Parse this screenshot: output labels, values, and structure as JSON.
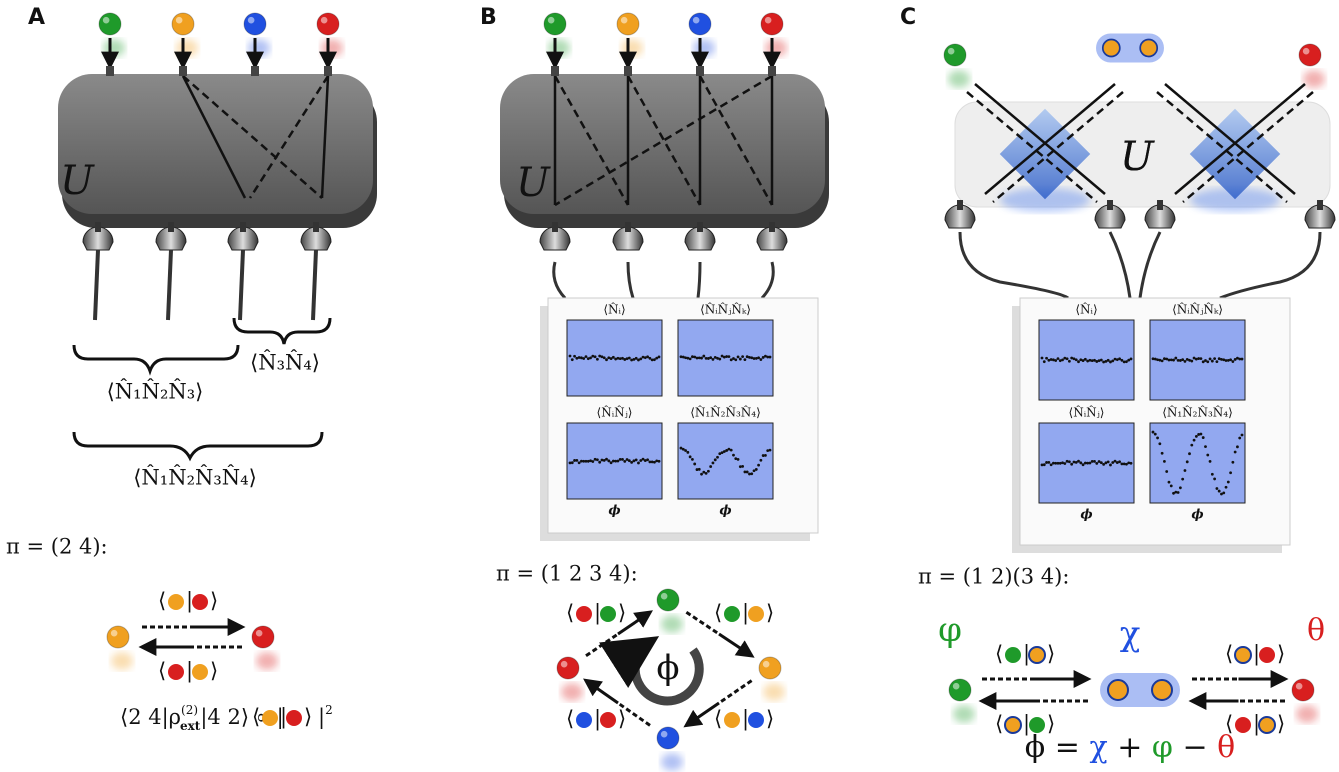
{
  "panels": [
    {
      "label": "A",
      "unitary": "U",
      "braces": [
        "⟨N̂₃N̂₄⟩",
        "⟨N̂₁N̂₂N̂₃⟩",
        "⟨N̂₁N̂₂N̂₃N̂₄⟩"
      ],
      "permutation": "π = (2 4):",
      "formula": [
        "⟨2 4|ρ",
        "(2)",
        "ext",
        "|4 2⟩ ∝ |",
        "|",
        "2"
      ]
    },
    {
      "label": "B",
      "unitary": "U",
      "permutation": "π = (1 2 3 4):",
      "plot_titles": [
        "⟨N̂ᵢ⟩",
        "⟨N̂ᵢN̂ⱼN̂ₖ⟩",
        "⟨N̂ᵢN̂ⱼ⟩",
        "⟨N̂₁N̂₂N̂₃N̂₄⟩"
      ],
      "plot_axis": "ϕ",
      "phase": "ϕ"
    },
    {
      "label": "C",
      "unitary": "U",
      "permutation": "π = (1 2)(3 4):",
      "plot_titles": [
        "⟨N̂ᵢ⟩",
        "⟨N̂ᵢN̂ⱼN̂ₖ⟩",
        "⟨N̂ᵢN̂ⱼ⟩",
        "⟨N̂₁N̂₂N̂₃N̂₄⟩"
      ],
      "plot_axis": "ϕ",
      "chi": "χ",
      "varphi": "φ",
      "theta": "θ",
      "equation": [
        "ϕ",
        "=",
        "χ",
        "+",
        "φ",
        "−",
        "θ"
      ]
    }
  ],
  "braket": {
    "bra": "⟨",
    "sep": "|",
    "ket": "⟩"
  }
}
